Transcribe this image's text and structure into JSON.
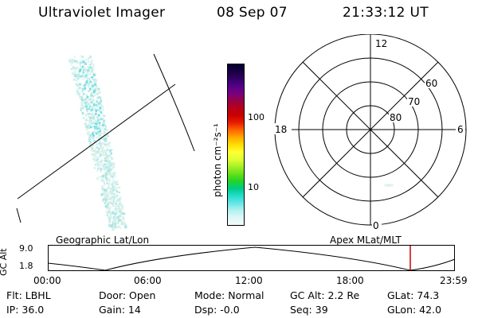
{
  "header": {
    "instrument": "Ultraviolet Imager",
    "date": "08 Sep 07",
    "time": "21:33:12 UT"
  },
  "image_panel": {
    "label": "Geographic Lat/Lon"
  },
  "colorbar": {
    "unit_label": "photon cm⁻²s⁻¹",
    "ticks": [
      "100",
      "10"
    ],
    "colors": [
      "#000033",
      "#1a0040",
      "#330066",
      "#550088",
      "#7a0080",
      "#990044",
      "#b8001a",
      "#cc0000",
      "#e81e00",
      "#ff6600",
      "#ffaa00",
      "#ffdd00",
      "#ffff33",
      "#dfff33",
      "#a6f026",
      "#66e01a",
      "#22d426",
      "#00cc88",
      "#22ddcc",
      "#66e6e6",
      "#b3f0f0",
      "#e0f7f7",
      "#f2fbfb"
    ]
  },
  "polar_plot": {
    "label": "Apex MLat/MLT",
    "mlt_labels": {
      "top": "12",
      "left": "18",
      "right": "6",
      "bottom": "0"
    },
    "lat_labels": [
      "60",
      "70",
      "80"
    ]
  },
  "orbit_plot": {
    "ylabel": "GC Alt",
    "yticks": [
      "9.0",
      "1.8"
    ],
    "xticks": [
      "00:00",
      "06:00",
      "12:00",
      "18:00",
      "23:59"
    ],
    "marker_color": "#cc0000"
  },
  "status": {
    "filter": "Flt: LBHL",
    "ip": "IP: 36.0",
    "door": "Door: Open",
    "gain": "Gain: 14",
    "mode": "Mode: Normal",
    "dsp": "Dsp:   -0.0",
    "gc_alt": "GC Alt: 2.2 Re",
    "seq": "Seq: 39",
    "glat": "GLat:  74.3",
    "glon": "GLon:  42.0"
  }
}
